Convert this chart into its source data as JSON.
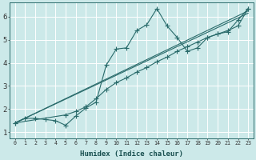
{
  "xlabel": "Humidex (Indice chaleur)",
  "bg_color": "#cce9e9",
  "grid_color": "#b0d4d4",
  "line_color": "#2a6b6b",
  "xlim": [
    -0.5,
    23.5
  ],
  "ylim": [
    0.75,
    6.6
  ],
  "xticks": [
    0,
    1,
    2,
    3,
    4,
    5,
    6,
    7,
    8,
    9,
    10,
    11,
    12,
    13,
    14,
    15,
    16,
    17,
    18,
    19,
    20,
    21,
    22,
    23
  ],
  "yticks": [
    1,
    2,
    3,
    4,
    5,
    6
  ],
  "series1_x": [
    0,
    1,
    2,
    3,
    4,
    5,
    6,
    7,
    8,
    9,
    10,
    11,
    12,
    13,
    14,
    15,
    16,
    17,
    18,
    19,
    20,
    21,
    22,
    23
  ],
  "series1_y": [
    1.4,
    1.6,
    1.6,
    1.55,
    1.5,
    1.3,
    1.7,
    2.05,
    2.3,
    3.9,
    4.6,
    4.65,
    5.4,
    5.65,
    6.35,
    5.6,
    5.1,
    4.5,
    4.65,
    5.1,
    5.25,
    5.35,
    5.85,
    6.35
  ],
  "series2_x": [
    0,
    5,
    6,
    7,
    8,
    9,
    10,
    11,
    12,
    13,
    14,
    15,
    16,
    17,
    18,
    19,
    20,
    21,
    22,
    23
  ],
  "series2_y": [
    1.4,
    1.75,
    1.9,
    2.1,
    2.45,
    2.85,
    3.15,
    3.35,
    3.6,
    3.8,
    4.05,
    4.25,
    4.5,
    4.7,
    4.9,
    5.1,
    5.25,
    5.4,
    5.6,
    6.35
  ],
  "series3_x": [
    0,
    23
  ],
  "series3_y": [
    1.4,
    6.25
  ],
  "series4_x": [
    0,
    23
  ],
  "series4_y": [
    1.4,
    6.15
  ]
}
